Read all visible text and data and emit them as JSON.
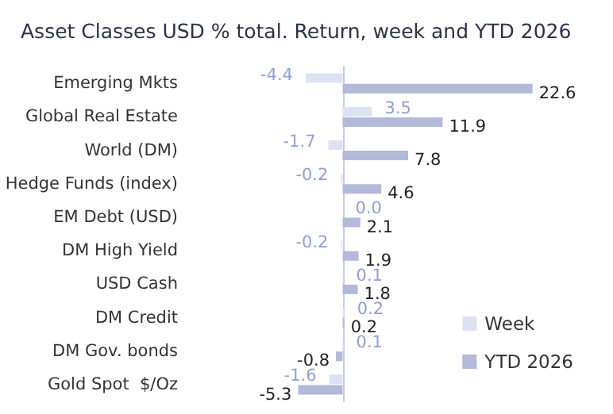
{
  "chart_data": {
    "type": "bar",
    "orientation": "horizontal",
    "title": "Asset Classes USD % total. Return, week and YTD 2026",
    "categories": [
      "Emerging Mkts",
      "Global Real Estate",
      "World (DM)",
      "Hedge Funds (index)",
      "EM Debt (USD)",
      "DM High Yield",
      "USD Cash",
      "DM Credit",
      "DM Gov. bonds",
      "Gold Spot  $/Oz"
    ],
    "series": [
      {
        "name": "Week",
        "color": "#dce2f2",
        "values": [
          -4.4,
          3.5,
          -1.7,
          -0.2,
          0.0,
          -0.2,
          0.1,
          0.2,
          0.1,
          -1.6
        ],
        "value_labels": [
          "-4.4",
          "3.5",
          "-1.7",
          "-0.2",
          "0.0",
          "-0.2",
          "0.1",
          "0.2",
          "0.1",
          "-1.6"
        ]
      },
      {
        "name": "YTD 2026",
        "color": "#b3b9d8",
        "values": [
          22.6,
          11.9,
          7.8,
          4.6,
          2.1,
          1.9,
          1.8,
          0.2,
          -0.8,
          -5.3
        ],
        "value_labels": [
          "22.6",
          "11.9",
          "7.8",
          "4.6",
          "2.1",
          "1.9",
          "1.8",
          "0.2",
          "-0.8",
          "-5.3"
        ]
      }
    ],
    "grid": false,
    "legend": "bottom right"
  }
}
